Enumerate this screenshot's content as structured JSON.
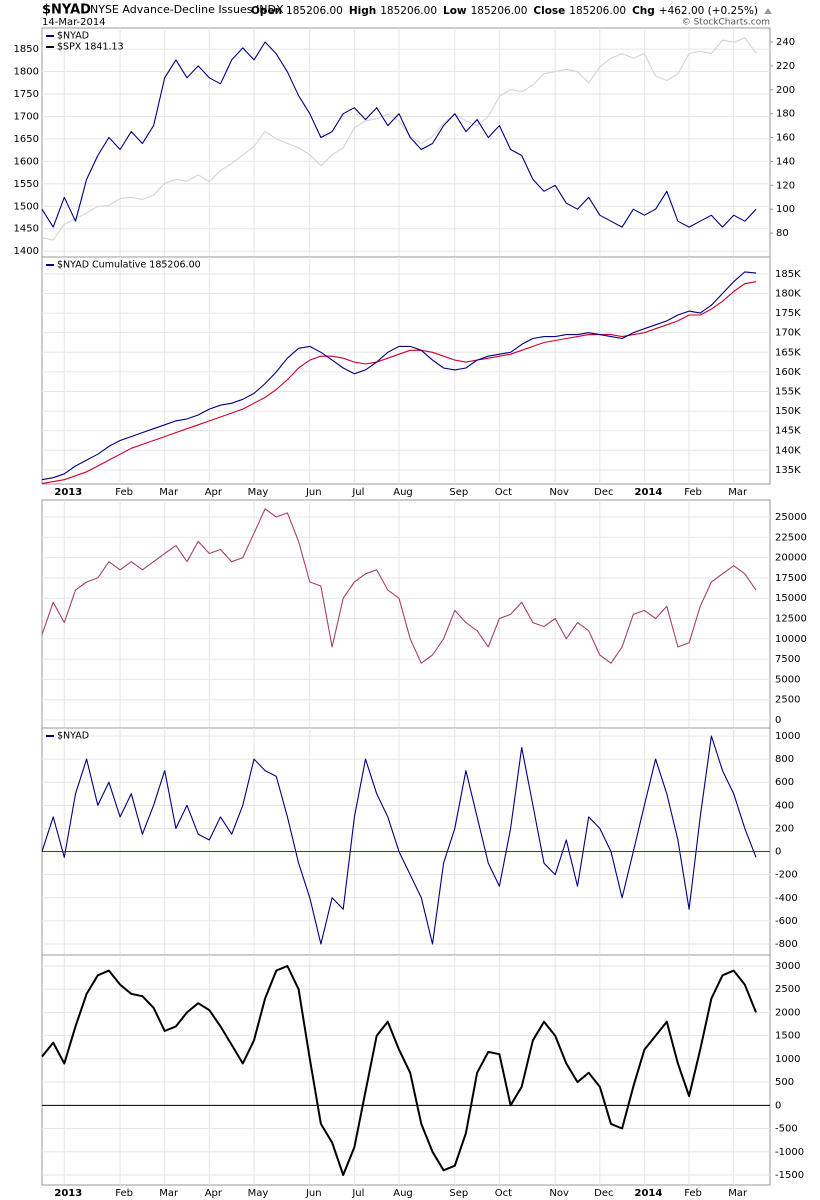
{
  "header": {
    "symbol": "$NYAD",
    "name": "NYSE Advance-Decline Issues INDX",
    "date": "14-Mar-2014",
    "credit": "© StockCharts.com",
    "quote": [
      {
        "label": "Open",
        "value": "185206.00"
      },
      {
        "label": "High",
        "value": "185206.00"
      },
      {
        "label": "Low",
        "value": "185206.00"
      },
      {
        "label": "Close",
        "value": "185206.00"
      },
      {
        "label": "Chg",
        "value": "+462.00 (+0.25%)"
      }
    ]
  },
  "chart_data": [
    {
      "type": "line",
      "grid": true,
      "yaxis": "left",
      "ylim": [
        1387,
        1897
      ],
      "yticks": [
        1400,
        1450,
        1500,
        1550,
        1600,
        1650,
        1700,
        1750,
        1800,
        1850
      ],
      "y2lim": [
        60,
        251.7
      ],
      "y2ticks": [
        80,
        100,
        120,
        140,
        160,
        180,
        200,
        220,
        240
      ],
      "series": [
        {
          "name": "$NYAD",
          "color": "#000080",
          "axis": "y2",
          "values": [
            100,
            85,
            110,
            90,
            125,
            145,
            160,
            150,
            165,
            155,
            170,
            210,
            225,
            210,
            220,
            210,
            205,
            225,
            235,
            225,
            240,
            230,
            215,
            195,
            180,
            160,
            165,
            180,
            185,
            175,
            185,
            170,
            180,
            160,
            150,
            155,
            170,
            180,
            165,
            175,
            160,
            170,
            150,
            145,
            125,
            115,
            120,
            105,
            100,
            110,
            95,
            90,
            85,
            100,
            95,
            100,
            115,
            90,
            85,
            90,
            95,
            85,
            95,
            90,
            100
          ]
        },
        {
          "name": "$SPX 1841.13",
          "color": "#d4d4d4",
          "values": [
            1430,
            1425,
            1460,
            1472,
            1485,
            1500,
            1502,
            1517,
            1520,
            1515,
            1525,
            1551,
            1560,
            1556,
            1570,
            1555,
            1580,
            1595,
            1614,
            1633,
            1667,
            1650,
            1640,
            1630,
            1615,
            1590,
            1615,
            1630,
            1675,
            1690,
            1695,
            1705,
            1690,
            1655,
            1640,
            1655,
            1685,
            1705,
            1690,
            1680,
            1700,
            1745,
            1760,
            1755,
            1770,
            1795,
            1800,
            1805,
            1800,
            1775,
            1810,
            1830,
            1840,
            1830,
            1840,
            1790,
            1780,
            1795,
            1840,
            1845,
            1840,
            1870,
            1865,
            1875,
            1841
          ]
        }
      ]
    },
    {
      "type": "line",
      "grid": true,
      "yaxis": "right",
      "categories": [
        null,
        null,
        "2013",
        null,
        null,
        null,
        null,
        "Feb",
        null,
        null,
        null,
        "Mar",
        null,
        null,
        null,
        "Apr",
        null,
        null,
        null,
        "May",
        null,
        null,
        null,
        null,
        "Jun",
        null,
        null,
        null,
        "Jul",
        null,
        null,
        null,
        "Aug",
        null,
        null,
        null,
        null,
        "Sep",
        null,
        null,
        null,
        "Oct",
        null,
        null,
        null,
        null,
        "Nov",
        null,
        null,
        null,
        "Dec",
        null,
        null,
        null,
        "2014",
        null,
        null,
        null,
        "Feb",
        null,
        null,
        null,
        "Mar",
        null,
        null
      ],
      "ylim": [
        131400,
        189300
      ],
      "yticks": [
        {
          "value": 135000,
          "label": "135K"
        },
        {
          "value": 140000,
          "label": "140K"
        },
        {
          "value": 145000,
          "label": "145K"
        },
        {
          "value": 150000,
          "label": "150K"
        },
        {
          "value": 155000,
          "label": "155K"
        },
        {
          "value": 160000,
          "label": "160K"
        },
        {
          "value": 165000,
          "label": "165K"
        },
        {
          "value": 170000,
          "label": "170K"
        },
        {
          "value": 175000,
          "label": "175K"
        },
        {
          "value": 180000,
          "label": "180K"
        },
        {
          "value": 185000,
          "label": "185K"
        }
      ],
      "series": [
        {
          "name": "$NYAD Cumulative 185206.00",
          "color": "#000080",
          "values": [
            132500,
            133000,
            134000,
            136000,
            137500,
            139000,
            141000,
            142500,
            143500,
            144500,
            145500,
            146500,
            147500,
            148000,
            149000,
            150500,
            151500,
            152000,
            153000,
            154500,
            157000,
            160000,
            163500,
            166000,
            166500,
            165000,
            163000,
            161000,
            159500,
            160500,
            162500,
            165000,
            166500,
            166500,
            165500,
            163000,
            161000,
            160500,
            161000,
            163000,
            164000,
            164500,
            165000,
            167000,
            168500,
            169000,
            169000,
            169500,
            169500,
            170000,
            169500,
            169000,
            168500,
            170000,
            171000,
            172000,
            173000,
            174500,
            175500,
            175000,
            177000,
            180000,
            183000,
            185500,
            185200
          ]
        },
        {
          "color": "#d0002a",
          "values": [
            131500,
            132000,
            132500,
            133500,
            134500,
            136000,
            137500,
            139000,
            140500,
            141500,
            142500,
            143500,
            144500,
            145500,
            146500,
            147500,
            148500,
            149500,
            150500,
            152000,
            153500,
            155500,
            158000,
            161000,
            163000,
            164000,
            164000,
            163500,
            162500,
            162000,
            162500,
            163500,
            164500,
            165500,
            165500,
            165000,
            164000,
            163000,
            162500,
            163000,
            163500,
            164000,
            164500,
            165500,
            166500,
            167500,
            168000,
            168500,
            169000,
            169500,
            169500,
            169500,
            169000,
            169500,
            170000,
            171000,
            172000,
            173000,
            174500,
            174500,
            176000,
            178000,
            180500,
            182500,
            183000
          ]
        }
      ]
    },
    {
      "type": "line",
      "grid": true,
      "yaxis": "right",
      "ylim": [
        -985,
        27094
      ],
      "yticks": [
        0,
        2500,
        5000,
        7500,
        10000,
        12500,
        15000,
        17500,
        20000,
        22500,
        25000
      ],
      "series": [
        {
          "color": "#a8406c",
          "values": [
            10500,
            14500,
            12000,
            16000,
            17000,
            17500,
            19500,
            18500,
            19500,
            18500,
            19500,
            20500,
            21500,
            19500,
            22000,
            20500,
            21000,
            19500,
            20000,
            23000,
            26000,
            25000,
            25500,
            22000,
            17000,
            16500,
            9000,
            15000,
            17000,
            18000,
            18500,
            16000,
            15000,
            10000,
            7000,
            8000,
            10000,
            13500,
            12000,
            11000,
            9000,
            12500,
            13000,
            14500,
            12000,
            11500,
            12500,
            10000,
            12000,
            11000,
            8000,
            7000,
            9000,
            13000,
            13500,
            12500,
            14000,
            9000,
            9500,
            14000,
            17000,
            18000,
            19000,
            18000,
            16000
          ]
        }
      ]
    },
    {
      "type": "line",
      "grid": true,
      "yaxis": "right",
      "reference_line": {
        "value": 0,
        "color": "#c00020"
      },
      "ylim": [
        -895,
        1069
      ],
      "yticks": [
        -800,
        -600,
        -400,
        -200,
        0,
        200,
        400,
        600,
        800,
        1000
      ],
      "series": [
        {
          "name": "$NYAD",
          "color": "#000080",
          "values": [
            0,
            300,
            -50,
            500,
            800,
            400,
            600,
            300,
            500,
            150,
            400,
            700,
            200,
            400,
            150,
            100,
            300,
            150,
            400,
            800,
            700,
            650,
            300,
            -100,
            -400,
            -800,
            -400,
            -500,
            300,
            800,
            500,
            300,
            0,
            -200,
            -400,
            -800,
            -100,
            200,
            700,
            300,
            -100,
            -300,
            200,
            900,
            400,
            -100,
            -200,
            100,
            -300,
            300,
            200,
            0,
            -400,
            0,
            400,
            800,
            500,
            100,
            -500,
            300,
            1000,
            700,
            500,
            200,
            -50
          ]
        }
      ]
    },
    {
      "type": "line",
      "grid": true,
      "yaxis": "right",
      "reference_line": {
        "value": 0,
        "color": "#000000"
      },
      "categories": [
        null,
        null,
        "2013",
        null,
        null,
        null,
        null,
        "Feb",
        null,
        null,
        null,
        "Mar",
        null,
        null,
        null,
        "Apr",
        null,
        null,
        null,
        "May",
        null,
        null,
        null,
        null,
        "Jun",
        null,
        null,
        null,
        "Jul",
        null,
        null,
        null,
        "Aug",
        null,
        null,
        null,
        null,
        "Sep",
        null,
        null,
        null,
        "Oct",
        null,
        null,
        null,
        null,
        "Nov",
        null,
        null,
        null,
        "Dec",
        null,
        null,
        null,
        "2014",
        null,
        null,
        null,
        "Feb",
        null,
        null,
        null,
        "Mar",
        null,
        null
      ],
      "ylim": [
        -1716,
        3237
      ],
      "yticks": [
        -1500,
        -1000,
        -500,
        0,
        500,
        1000,
        1500,
        2000,
        2500,
        3000
      ],
      "series": [
        {
          "color": "#000000",
          "width": 2,
          "values": [
            1050,
            1350,
            900,
            1700,
            2400,
            2800,
            2900,
            2600,
            2400,
            2350,
            2100,
            1600,
            1700,
            2000,
            2200,
            2050,
            1700,
            1300,
            900,
            1400,
            2300,
            2900,
            3000,
            2500,
            1000,
            -400,
            -800,
            -1500,
            -900,
            300,
            1500,
            1800,
            1200,
            700,
            -400,
            -1000,
            -1400,
            -1300,
            -600,
            700,
            1150,
            1100,
            0,
            400,
            1400,
            1800,
            1500,
            900,
            500,
            700,
            400,
            -400,
            -500,
            400,
            1200,
            1500,
            1800,
            900,
            200,
            1200,
            2300,
            2800,
            2900,
            2600,
            2000
          ]
        }
      ]
    }
  ]
}
